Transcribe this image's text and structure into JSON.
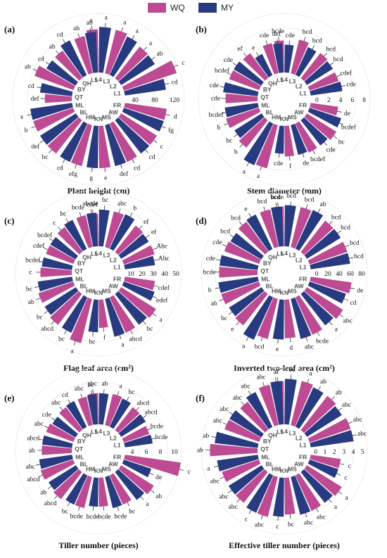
{
  "legend": {
    "colors": {
      "WQ": "#bd4a93",
      "MY": "#283a80"
    }
  },
  "chart_data": [
    {
      "type": "bar",
      "polar": true,
      "panel_label": "(a)",
      "title": "Plant height (cm)",
      "categories": [
        "L1",
        "L2",
        "L3",
        "L4",
        "L5",
        "QH",
        "BY",
        "QT",
        "ML",
        "BL",
        "HM",
        "KN",
        "MS",
        "AW",
        "FR"
      ],
      "ticks": [
        "40",
        "80",
        "120"
      ],
      "rmax": 140,
      "series": [
        {
          "name": "WQ",
          "values": [
            132,
            95,
            106,
            102,
            90,
            80,
            98,
            64,
            100,
            100,
            100,
            100,
            100,
            100,
            100
          ],
          "letters": [
            "c",
            "a",
            "a",
            "a",
            "ab",
            "ab",
            "ab",
            "def",
            "b",
            "bc",
            "efg",
            "e",
            "cd",
            "c",
            "d"
          ]
        },
        {
          "name": "MY",
          "values": [
            98,
            94,
            100,
            108,
            96,
            92,
            80,
            76,
            100,
            100,
            100,
            100,
            100,
            100,
            100
          ],
          "letters": [
            "cd",
            "ab",
            "a",
            "a",
            "ab",
            "cd",
            "cd",
            "cd",
            "a",
            "def",
            "cd",
            "g",
            "def",
            "cd",
            "fg"
          ]
        }
      ]
    },
    {
      "type": "bar",
      "polar": true,
      "panel_label": "(b)",
      "title": "Stem diameter (mm)",
      "categories": [
        "L1",
        "L2",
        "L3",
        "L4",
        "L5",
        "QH",
        "BY",
        "QT",
        "ML",
        "BL",
        "HM",
        "KN",
        "MS",
        "AW",
        "FR"
      ],
      "ticks": [
        "0",
        "2",
        "4",
        "6",
        "8"
      ],
      "rmax": 8.5,
      "series": [
        {
          "name": "WQ",
          "values": [
            4.4,
            4.6,
            5.0,
            4.6,
            4.4,
            4.4,
            4.6,
            4.6,
            5.0,
            5.0,
            6.4,
            4.4,
            4.6,
            5.0,
            4.0
          ],
          "letters": [
            "cdef",
            "bcd",
            "bcd",
            "bcde",
            "cde",
            "ef",
            "bcdef",
            "cde",
            "b",
            "b",
            "a",
            "f",
            "bcdef",
            "bc",
            "de"
          ]
        },
        {
          "name": "MY",
          "values": [
            4.6,
            4.4,
            4.4,
            4.0,
            4.2,
            3.4,
            4.6,
            5.0,
            4.8,
            4.6,
            6.6,
            4.0,
            4.4,
            4.6,
            4.8
          ],
          "letters": [
            "cde",
            "bcd",
            "bcd",
            "cde",
            "def",
            "e",
            "cde",
            "cde",
            "bcdef",
            "bc",
            "a",
            "cde",
            "de",
            "cde",
            "bcdef"
          ]
        }
      ]
    },
    {
      "type": "bar",
      "polar": true,
      "panel_label": "(c)",
      "title": "Flag leaf area (cm²)",
      "categories": [
        "L1",
        "L2",
        "L3",
        "L4",
        "L5",
        "QH",
        "BY",
        "QT",
        "ML",
        "BL",
        "HM",
        "KN",
        "MS",
        "AW",
        "FR"
      ],
      "ticks": [
        "10",
        "20",
        "30",
        "40",
        "50"
      ],
      "rmax": 52,
      "series": [
        {
          "name": "WQ",
          "values": [
            30,
            31,
            34,
            30,
            30,
            28,
            27,
            29,
            34,
            36,
            42,
            26,
            36,
            38,
            28
          ],
          "letters": [
            "Abc",
            "ef",
            "abc",
            "cdef",
            "bcde",
            "c",
            "cdef",
            "c",
            "ab",
            "abcd",
            "a",
            "f",
            "abcd",
            "a",
            "cdef"
          ]
        },
        {
          "name": "MY",
          "values": [
            28,
            30,
            35,
            34,
            31,
            30,
            27,
            28,
            32,
            34,
            36,
            30,
            36,
            36,
            30
          ],
          "letters": [
            "Abc",
            "ef",
            "b",
            "bc",
            "abcde",
            "bc",
            "bcdef",
            "bcdef",
            "bc",
            "bc",
            "bc",
            "bc",
            "a",
            "bc",
            "edef"
          ]
        }
      ]
    },
    {
      "type": "bar",
      "polar": true,
      "panel_label": "(d)",
      "title": "Inverted two-leaf area (cm²)",
      "categories": [
        "L1",
        "L2",
        "L3",
        "L4",
        "L5",
        "QH",
        "BY",
        "QT",
        "ML",
        "BL",
        "HM",
        "KN",
        "MS",
        "AW",
        "FR"
      ],
      "ticks": [
        "0",
        "20",
        "40",
        "60",
        "80"
      ],
      "rmax": 82,
      "series": [
        {
          "name": "WQ",
          "values": [
            58,
            58,
            60,
            58,
            56,
            54,
            54,
            56,
            58,
            58,
            60,
            56,
            60,
            62,
            60
          ],
          "letters": [
            "bcd",
            "bcd",
            "bcd",
            "bcde",
            "bcd",
            "bcd",
            "cde",
            "bcde",
            "ab",
            "e",
            "bcd",
            "d",
            "bcde",
            "abc",
            "de"
          ]
        },
        {
          "name": "MY",
          "values": [
            58,
            58,
            62,
            60,
            58,
            56,
            52,
            56,
            58,
            56,
            68,
            58,
            60,
            58,
            56
          ],
          "letters": [
            "bcd",
            "bcd",
            "ab",
            "bcd",
            "bcd",
            "e",
            "bcd",
            "cde",
            "b",
            "bc",
            "a",
            "e",
            "abc",
            "a",
            "cd"
          ]
        }
      ]
    },
    {
      "type": "bar",
      "polar": true,
      "panel_label": "(e)",
      "title": "Tiller number (pieces)",
      "categories": [
        "L1",
        "L2",
        "L3",
        "L4",
        "L5",
        "QH",
        "BY",
        "QT",
        "ML",
        "BL",
        "HM",
        "KN",
        "MS",
        "AW",
        "FR"
      ],
      "ticks": [
        "4",
        "6",
        "8",
        "10"
      ],
      "rmax": 10.5,
      "series": [
        {
          "name": "WQ",
          "values": [
            5.0,
            5.4,
            6.0,
            5.8,
            5.4,
            5.2,
            5.4,
            5.6,
            6.4,
            6.4,
            6.0,
            5.4,
            6.0,
            7.2,
            10.5
          ],
          "letters": [
            "bcde",
            "abcd",
            "a",
            "abc",
            "abc",
            "abc",
            "abc",
            "ab",
            "abcd",
            "abcd",
            "bcde",
            "bcde",
            "bc",
            "ab",
            "c"
          ]
        },
        {
          "name": "MY",
          "values": [
            5.2,
            5.4,
            5.8,
            5.8,
            5.6,
            5.4,
            5.0,
            5.6,
            6.2,
            6.0,
            6.0,
            5.4,
            6.0,
            6.6,
            5.4
          ],
          "letters": [
            "bcde",
            "abcd",
            "bc",
            "ab",
            "bc",
            "cd",
            "cde",
            "abcd",
            "abc",
            "ab",
            "bc",
            "bcde",
            "bcde",
            "a",
            "de"
          ]
        }
      ]
    },
    {
      "type": "bar",
      "polar": true,
      "panel_label": "(f)",
      "title": "Effective tiller number (pieces)",
      "categories": [
        "L1",
        "L2",
        "L3",
        "L4",
        "L5",
        "QH",
        "BY",
        "QT",
        "ML",
        "BL",
        "HM",
        "KN",
        "MS",
        "AW",
        "FR"
      ],
      "ticks": [
        "0",
        "1",
        "2",
        "3",
        "4",
        "5"
      ],
      "rmax": 5.2,
      "series": [
        {
          "name": "WQ",
          "values": [
            4.0,
            4.0,
            4.2,
            4.0,
            3.8,
            3.2,
            3.4,
            4.4,
            3.6,
            3.6,
            3.8,
            3.4,
            3.6,
            3.8,
            2.8
          ],
          "letters": [
            "abc",
            "ab",
            "a",
            "a",
            "abc",
            "abc",
            "abc",
            "ab",
            "abc",
            "abc",
            "abc",
            "bc",
            "abc",
            "a",
            "c"
          ]
        },
        {
          "name": "MY",
          "values": [
            4.0,
            3.8,
            4.0,
            4.2,
            4.0,
            3.6,
            3.4,
            4.0,
            3.8,
            3.6,
            3.8,
            3.6,
            3.6,
            3.6,
            2.8
          ],
          "letters": [
            "abc",
            "abc",
            "ab",
            "bc",
            "a",
            "abc",
            "abc",
            "ab",
            "a",
            "abc",
            "c",
            "c",
            "abc",
            "a",
            "c"
          ]
        }
      ]
    }
  ]
}
